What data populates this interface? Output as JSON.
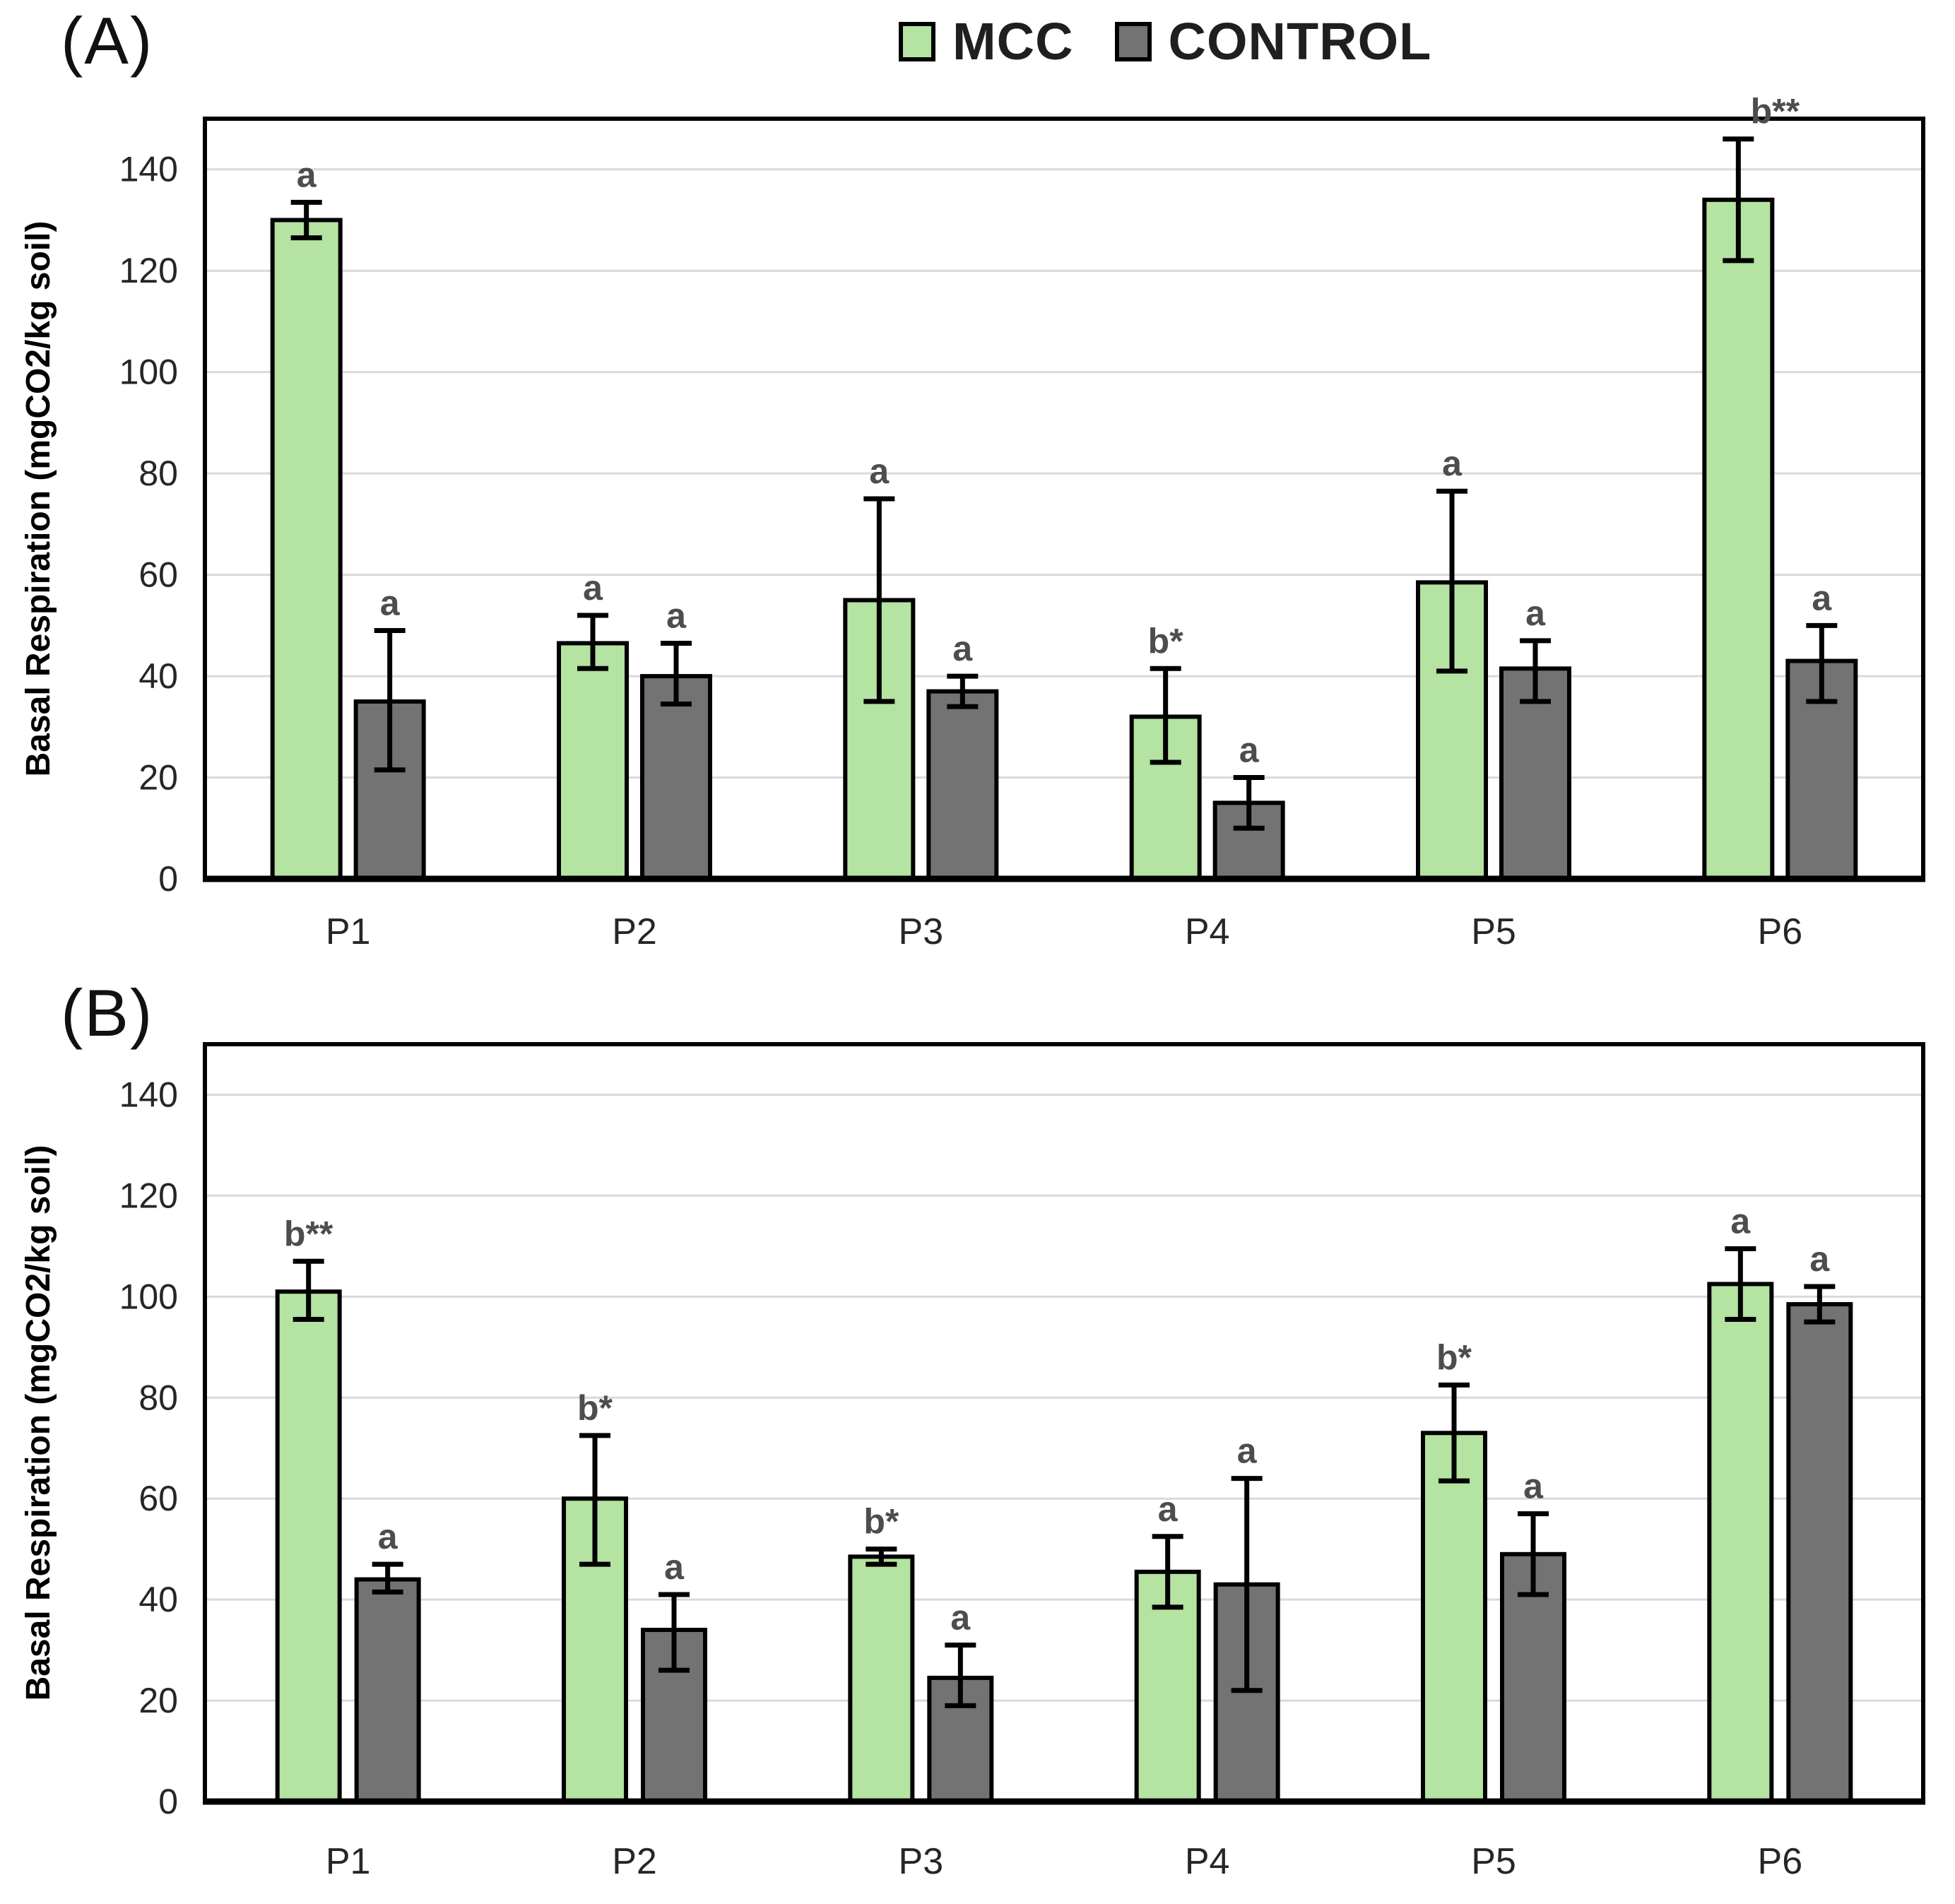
{
  "page": {
    "background": "#ffffff"
  },
  "colors": {
    "mcc": "#b4e3a2",
    "control": "#737373",
    "bar_outline": "#000000",
    "gridline": "#d9d9d9",
    "plot_border": "#000000",
    "tick_text": "#262626",
    "sig_text": "#4d4d4d"
  },
  "chart_data": [
    {
      "type": "bar",
      "panel_label": "(A)",
      "ylabel": "Basal Respiration (mgCO2/kg soil)",
      "ylim": [
        0,
        150
      ],
      "yticks": [
        0,
        20,
        40,
        60,
        80,
        100,
        120,
        140
      ],
      "grid": true,
      "legend_position": "top-center",
      "categories": [
        "P1",
        "P2",
        "P3",
        "P4",
        "P5",
        "P6"
      ],
      "series": [
        {
          "name": "MCC",
          "color": "#b4e3a2",
          "values": [
            130,
            46.5,
            55,
            32,
            58.5,
            134
          ],
          "err_lo": [
            126.5,
            41.5,
            35,
            23,
            41,
            122
          ],
          "err_hi": [
            133.5,
            52,
            75,
            41.5,
            76.5,
            146
          ],
          "sig_labels": [
            "a",
            "a",
            "a",
            "b*",
            "a",
            "b**"
          ]
        },
        {
          "name": "CONTROL",
          "color": "#737373",
          "values": [
            35,
            40,
            37,
            15,
            41.5,
            43
          ],
          "err_lo": [
            21.5,
            34.5,
            34,
            10,
            35,
            35
          ],
          "err_hi": [
            49,
            46.5,
            40,
            20,
            47,
            50
          ],
          "sig_labels": [
            "a",
            "a",
            "a",
            "a",
            "a",
            "a"
          ]
        }
      ]
    },
    {
      "type": "bar",
      "panel_label": "(B)",
      "ylabel": "Basal Respiration (mgCO2/kg soil)",
      "ylim": [
        0,
        150
      ],
      "yticks": [
        0,
        20,
        40,
        60,
        80,
        100,
        120,
        140
      ],
      "grid": true,
      "categories": [
        "P1",
        "P2",
        "P3",
        "P4",
        "P5",
        "P6"
      ],
      "series": [
        {
          "name": "MCC",
          "color": "#b4e3a2",
          "values": [
            101,
            60,
            48.5,
            45.5,
            73,
            102.5
          ],
          "err_lo": [
            95.5,
            47,
            47,
            38.5,
            63.5,
            95.5
          ],
          "err_hi": [
            107,
            72.5,
            50,
            52.5,
            82.5,
            109.5
          ],
          "sig_labels": [
            "b**",
            "b*",
            "b*",
            "a",
            "b*",
            "a"
          ]
        },
        {
          "name": "CONTROL",
          "color": "#737373",
          "values": [
            44,
            34,
            24.5,
            43,
            49,
            98.5
          ],
          "err_lo": [
            41.5,
            26,
            19,
            22,
            41,
            95
          ],
          "err_hi": [
            47,
            41,
            31,
            64,
            57,
            102
          ],
          "sig_labels": [
            "a",
            "a",
            "a",
            "a",
            "a",
            "a"
          ]
        }
      ]
    }
  ]
}
